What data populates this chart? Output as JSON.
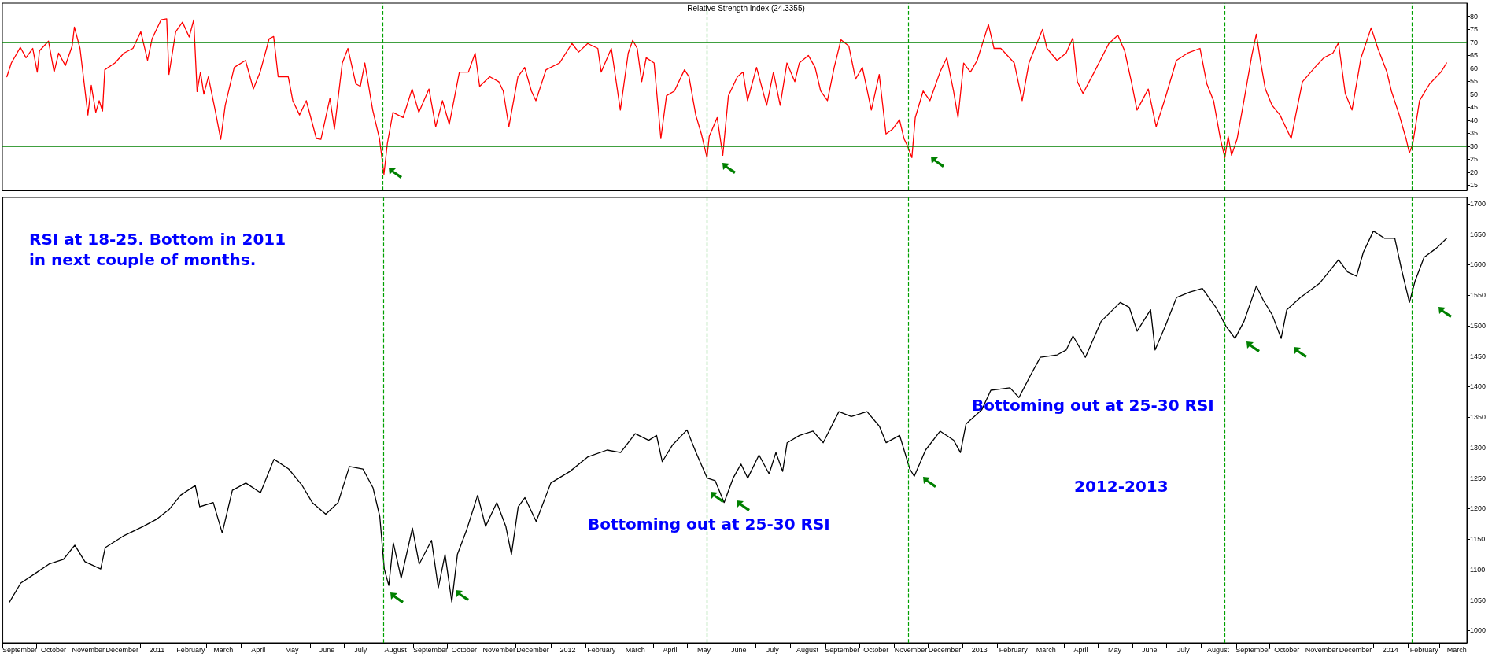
{
  "chart_data": [
    {
      "type": "line",
      "title": "Relative Strength Index (24.3355)",
      "color": "#ff0000",
      "marker": "none",
      "line_style": "solid",
      "tick_labels": "y",
      "x": [
        "2010-09-05",
        "2010-09-09",
        "2010-09-17",
        "2010-09-22",
        "2010-09-28",
        "2010-10-02",
        "2010-10-04",
        "2010-10-12",
        "2010-10-17",
        "2010-10-21",
        "2010-10-27",
        "2010-11-02",
        "2010-11-04",
        "2010-11-09",
        "2010-11-13",
        "2010-11-16",
        "2010-11-19",
        "2010-11-23",
        "2010-11-26",
        "2010-11-29",
        "2010-12-01",
        "2010-12-10",
        "2010-12-18",
        "2010-12-26",
        "2011-01-02",
        "2011-01-08",
        "2011-01-12",
        "2011-01-20",
        "2011-01-25",
        "2011-01-27",
        "2011-02-02",
        "2011-02-08",
        "2011-02-14",
        "2011-02-18",
        "2011-02-21",
        "2011-02-24",
        "2011-02-27",
        "2011-03-03",
        "2011-03-09",
        "2011-03-14",
        "2011-03-18",
        "2011-03-26",
        "2011-04-05",
        "2011-04-12",
        "2011-04-18",
        "2011-04-26",
        "2011-04-30",
        "2011-05-04",
        "2011-05-13",
        "2011-05-17",
        "2011-05-23",
        "2011-05-29",
        "2011-06-07",
        "2011-06-11",
        "2011-06-19",
        "2011-06-23",
        "2011-06-30",
        "2011-07-05",
        "2011-07-12",
        "2011-07-16",
        "2011-07-20",
        "2011-07-27",
        "2011-08-02",
        "2011-08-06",
        "2011-08-09",
        "2011-08-14",
        "2011-08-23",
        "2011-08-31",
        "2011-09-06",
        "2011-09-15",
        "2011-09-21",
        "2011-09-27",
        "2011-10-03",
        "2011-10-12",
        "2011-10-20",
        "2011-10-26",
        "2011-10-30",
        "2011-11-08",
        "2011-11-16",
        "2011-11-20",
        "2011-11-25",
        "2011-12-03",
        "2011-12-09",
        "2011-12-15",
        "2011-12-19",
        "2011-12-28",
        "2012-01-09",
        "2012-01-20",
        "2012-01-26",
        "2012-02-03",
        "2012-02-12",
        "2012-02-15",
        "2012-02-24",
        "2012-03-03",
        "2012-03-10",
        "2012-03-14",
        "2012-03-18",
        "2012-03-22",
        "2012-03-26",
        "2012-04-02",
        "2012-04-08",
        "2012-04-13",
        "2012-04-20",
        "2012-04-29",
        "2012-05-03",
        "2012-05-09",
        "2012-05-14",
        "2012-05-19",
        "2012-05-21",
        "2012-05-28",
        "2012-06-02",
        "2012-06-07",
        "2012-06-15",
        "2012-06-20",
        "2012-06-24",
        "2012-07-02",
        "2012-07-11",
        "2012-07-17",
        "2012-07-23",
        "2012-07-29",
        "2012-08-05",
        "2012-08-09",
        "2012-08-17",
        "2012-08-23",
        "2012-08-28",
        "2012-09-03",
        "2012-09-09",
        "2012-09-15",
        "2012-09-22",
        "2012-09-28",
        "2012-10-04",
        "2012-10-12",
        "2012-10-19",
        "2012-10-25",
        "2012-10-31",
        "2012-11-06",
        "2012-11-10",
        "2012-11-13",
        "2012-11-17",
        "2012-11-20",
        "2012-11-27",
        "2012-12-03",
        "2012-12-12",
        "2012-12-18",
        "2012-12-24",
        "2012-12-28",
        "2013-01-02",
        "2013-01-08",
        "2013-01-14",
        "2013-01-24",
        "2013-01-29",
        "2013-02-04",
        "2013-02-16",
        "2013-02-23",
        "2013-03-01",
        "2013-03-13",
        "2013-03-17",
        "2013-03-26",
        "2013-04-03",
        "2013-04-09",
        "2013-04-13",
        "2013-04-18",
        "2013-04-28",
        "2013-05-11",
        "2013-05-19",
        "2013-05-25",
        "2013-05-31",
        "2013-06-05",
        "2013-06-15",
        "2013-06-22",
        "2013-06-30",
        "2013-07-10",
        "2013-07-20",
        "2013-07-31",
        "2013-08-06",
        "2013-08-12",
        "2013-08-18",
        "2013-08-22",
        "2013-08-25",
        "2013-08-28",
        "2013-09-02",
        "2013-09-08",
        "2013-09-15",
        "2013-09-19",
        "2013-09-23",
        "2013-09-27",
        "2013-10-03",
        "2013-10-10",
        "2013-10-20",
        "2013-10-24",
        "2013-10-30",
        "2013-11-10",
        "2013-11-18",
        "2013-11-26",
        "2013-12-01",
        "2013-12-07",
        "2013-12-13",
        "2013-12-21",
        "2013-12-30",
        "2014-01-05",
        "2014-01-13",
        "2014-01-17",
        "2014-01-24",
        "2014-01-30",
        "2014-02-02",
        "2014-02-05",
        "2014-02-11",
        "2014-02-20",
        "2014-03-02",
        "2014-03-07"
      ],
      "values": [
        56.7,
        62,
        68,
        64,
        67.6,
        58.5,
        66.7,
        70.4,
        58.5,
        65.8,
        61,
        68.5,
        75.8,
        67.6,
        53,
        42,
        53.4,
        43,
        47.5,
        43.5,
        59.4,
        62,
        65.8,
        67.6,
        74,
        63,
        71.3,
        78.6,
        79,
        57.6,
        74,
        77.7,
        72,
        78.6,
        51,
        58.5,
        50,
        56.7,
        44,
        32.6,
        45.7,
        60.3,
        63,
        52,
        58.5,
        71.3,
        72.2,
        56.7,
        56.7,
        47.5,
        42,
        47.5,
        32.9,
        32.6,
        48.4,
        36.6,
        62,
        67.6,
        54,
        53,
        62,
        43.9,
        32.9,
        19.2,
        31,
        43,
        41,
        52,
        43,
        52,
        37.5,
        47.5,
        38.4,
        58.5,
        58.5,
        65.8,
        53,
        56.7,
        54.8,
        51.2,
        37.5,
        56.7,
        60.3,
        51.2,
        47.5,
        59.4,
        62,
        69.5,
        66.2,
        69.5,
        67.6,
        58.5,
        67.6,
        43.9,
        65.8,
        70.7,
        67.6,
        54.8,
        64,
        62,
        32.9,
        49.4,
        51.2,
        59.4,
        56.7,
        42,
        34.7,
        25.6,
        33.8,
        41,
        26.5,
        49.4,
        56.7,
        58.5,
        47.5,
        60.3,
        45.7,
        58.5,
        45.7,
        62,
        54.8,
        62,
        64.9,
        60.3,
        51.2,
        47.5,
        60.3,
        70.9,
        68.5,
        55.8,
        60.3,
        43.9,
        57.6,
        34.7,
        36.6,
        40.2,
        32.9,
        30.2,
        25.6,
        41,
        51.2,
        47.5,
        58.5,
        64,
        51.2,
        41,
        62,
        58.5,
        63,
        76.8,
        67.6,
        67.6,
        62,
        47.5,
        62,
        74.9,
        67.6,
        63,
        65.8,
        71.6,
        54.8,
        50.3,
        58.5,
        69.5,
        72.7,
        66.7,
        54.8,
        43.9,
        52,
        37.5,
        48.4,
        63,
        65.8,
        67.6,
        54,
        47.5,
        33,
        25.6,
        33.8,
        26.5,
        32.9,
        47.5,
        64.9,
        73.1,
        62,
        52,
        45.7,
        42,
        32.9,
        42,
        54.8,
        60.3,
        64,
        65.8,
        69.8,
        50.3,
        43.9,
        64,
        75.5,
        67.6,
        58.5,
        51.2,
        42,
        32.9,
        27.4,
        31,
        47.5,
        54,
        58.5,
        62
      ],
      "xlim": [
        "2010-09-01",
        "2014-03-25"
      ],
      "ylim": [
        13,
        85
      ],
      "yticks": [
        15,
        20,
        25,
        30,
        35,
        40,
        45,
        50,
        55,
        60,
        65,
        70,
        75,
        80
      ],
      "ref_lines": [
        {
          "axis": "y",
          "value": 70,
          "color": "#008000",
          "line_style": "solid"
        },
        {
          "axis": "y",
          "value": 30,
          "color": "#008000",
          "line_style": "solid"
        },
        {
          "axis": "x",
          "value": "2011-08-05",
          "color": "#00a000",
          "line_style": "dashed"
        },
        {
          "axis": "x",
          "value": "2012-05-19",
          "color": "#00a000",
          "line_style": "dashed"
        },
        {
          "axis": "x",
          "value": "2012-11-14",
          "color": "#00a000",
          "line_style": "dashed"
        },
        {
          "axis": "x",
          "value": "2013-08-22",
          "color": "#00a000",
          "line_style": "dashed"
        },
        {
          "axis": "x",
          "value": "2014-02-04",
          "color": "#00a000",
          "line_style": "dashed"
        }
      ]
    },
    {
      "type": "line",
      "color": "#000000",
      "marker": "none",
      "line_style": "solid",
      "x": [
        "2010-09-07",
        "2010-09-17",
        "2010-09-30",
        "2010-10-12",
        "2010-10-25",
        "2010-11-04",
        "2010-11-13",
        "2010-11-27",
        "2010-12-01",
        "2010-12-18",
        "2011-01-04",
        "2011-01-16",
        "2011-01-27",
        "2011-02-06",
        "2011-02-19",
        "2011-02-23",
        "2011-03-07",
        "2011-03-15",
        "2011-03-24",
        "2011-04-05",
        "2011-04-18",
        "2011-04-30",
        "2011-05-13",
        "2011-05-25",
        "2011-06-03",
        "2011-06-15",
        "2011-06-26",
        "2011-07-06",
        "2011-07-18",
        "2011-07-27",
        "2011-08-02",
        "2011-08-06",
        "2011-08-10",
        "2011-08-14",
        "2011-08-21",
        "2011-08-31",
        "2011-09-06",
        "2011-09-17",
        "2011-09-23",
        "2011-09-29",
        "2011-10-05",
        "2011-10-10",
        "2011-10-18",
        "2011-10-28",
        "2011-11-04",
        "2011-11-14",
        "2011-11-22",
        "2011-11-27",
        "2011-12-03",
        "2011-12-09",
        "2011-12-19",
        "2012-01-01",
        "2012-01-18",
        "2012-02-03",
        "2012-02-20",
        "2012-03-03",
        "2012-03-16",
        "2012-03-28",
        "2012-04-04",
        "2012-04-09",
        "2012-04-18",
        "2012-05-01",
        "2012-05-09",
        "2012-05-19",
        "2012-05-26",
        "2012-06-03",
        "2012-06-11",
        "2012-06-18",
        "2012-06-24",
        "2012-07-04",
        "2012-07-13",
        "2012-07-19",
        "2012-07-25",
        "2012-07-29",
        "2012-08-09",
        "2012-08-21",
        "2012-08-30",
        "2012-09-13",
        "2012-09-24",
        "2012-10-08",
        "2012-10-19",
        "2012-10-25",
        "2012-11-06",
        "2012-11-15",
        "2012-11-19",
        "2012-11-29",
        "2012-12-12",
        "2012-12-24",
        "2012-12-30",
        "2013-01-04",
        "2013-01-18",
        "2013-01-26",
        "2013-02-12",
        "2013-02-20",
        "2013-03-03",
        "2013-03-11",
        "2013-03-26",
        "2013-04-03",
        "2013-04-09",
        "2013-04-20",
        "2013-05-04",
        "2013-05-21",
        "2013-05-29",
        "2013-06-05",
        "2013-06-17",
        "2013-06-21",
        "2013-06-30",
        "2013-07-10",
        "2013-07-22",
        "2013-08-02",
        "2013-08-14",
        "2013-08-23",
        "2013-08-31",
        "2013-09-08",
        "2013-09-19",
        "2013-09-25",
        "2013-10-03",
        "2013-10-11",
        "2013-10-16",
        "2013-10-28",
        "2013-11-14",
        "2013-12-01",
        "2013-12-09",
        "2013-12-17",
        "2013-12-23",
        "2014-01-01",
        "2014-01-11",
        "2014-01-20",
        "2014-01-26",
        "2014-02-02",
        "2014-02-07",
        "2014-02-15",
        "2014-02-26",
        "2014-03-07"
      ],
      "values": [
        1047,
        1078,
        1094,
        1109,
        1117,
        1140,
        1113,
        1101,
        1136,
        1156,
        1171,
        1183,
        1199,
        1222,
        1238,
        1203,
        1210,
        1160,
        1230,
        1242,
        1226,
        1281,
        1265,
        1238,
        1210,
        1191,
        1210,
        1269,
        1265,
        1234,
        1187,
        1101,
        1074,
        1144,
        1086,
        1168,
        1109,
        1148,
        1070,
        1125,
        1047,
        1125,
        1164,
        1222,
        1171,
        1210,
        1171,
        1125,
        1203,
        1218,
        1179,
        1242,
        1261,
        1285,
        1296,
        1292,
        1323,
        1312,
        1320,
        1277,
        1304,
        1329,
        1292,
        1250,
        1246,
        1210,
        1250,
        1273,
        1250,
        1288,
        1257,
        1292,
        1261,
        1308,
        1320,
        1327,
        1308,
        1359,
        1351,
        1359,
        1335,
        1308,
        1320,
        1265,
        1253,
        1296,
        1327,
        1312,
        1292,
        1339,
        1362,
        1394,
        1398,
        1382,
        1421,
        1448,
        1452,
        1460,
        1483,
        1448,
        1507,
        1538,
        1530,
        1491,
        1526,
        1460,
        1499,
        1546,
        1555,
        1561,
        1530,
        1499,
        1479,
        1507,
        1565,
        1542,
        1518,
        1479,
        1526,
        1546,
        1569,
        1608,
        1588,
        1581,
        1620,
        1655,
        1643,
        1643,
        1592,
        1538,
        1573,
        1612,
        1627,
        1643
      ],
      "xlim": [
        "2010-09-01",
        "2014-03-25"
      ],
      "ylim": [
        980,
        1710
      ],
      "yticks": [
        1000,
        1050,
        1100,
        1150,
        1200,
        1250,
        1300,
        1350,
        1400,
        1450,
        1500,
        1550,
        1600,
        1650,
        1700
      ],
      "xticks": [
        {
          "value": "2010-09-01",
          "label": null
        },
        {
          "value": "2010-09-16",
          "label": "September"
        },
        {
          "value": "2010-10-01",
          "label": null
        },
        {
          "value": "2010-10-16",
          "label": "October"
        },
        {
          "value": "2010-11-01",
          "label": null
        },
        {
          "value": "2010-11-16",
          "label": "November"
        },
        {
          "value": "2010-12-01",
          "label": null
        },
        {
          "value": "2010-12-16",
          "label": "December"
        },
        {
          "value": "2011-01-01",
          "label": null
        },
        {
          "value": "2011-01-16",
          "label": "2011"
        },
        {
          "value": "2011-02-01",
          "label": null
        },
        {
          "value": "2011-02-15",
          "label": "February"
        },
        {
          "value": "2011-03-01",
          "label": null
        },
        {
          "value": "2011-03-16",
          "label": "March"
        },
        {
          "value": "2011-04-01",
          "label": null
        },
        {
          "value": "2011-04-16",
          "label": "April"
        },
        {
          "value": "2011-05-01",
          "label": null
        },
        {
          "value": "2011-05-16",
          "label": "May"
        },
        {
          "value": "2011-06-01",
          "label": null
        },
        {
          "value": "2011-06-16",
          "label": "June"
        },
        {
          "value": "2011-07-01",
          "label": null
        },
        {
          "value": "2011-07-16",
          "label": "July"
        },
        {
          "value": "2011-08-01",
          "label": null
        },
        {
          "value": "2011-08-16",
          "label": "August"
        },
        {
          "value": "2011-09-01",
          "label": null
        },
        {
          "value": "2011-09-16",
          "label": "September"
        },
        {
          "value": "2011-10-01",
          "label": null
        },
        {
          "value": "2011-10-16",
          "label": "October"
        },
        {
          "value": "2011-11-01",
          "label": null
        },
        {
          "value": "2011-11-16",
          "label": "November"
        },
        {
          "value": "2011-12-01",
          "label": null
        },
        {
          "value": "2011-12-16",
          "label": "December"
        },
        {
          "value": "2012-01-01",
          "label": null
        },
        {
          "value": "2012-01-16",
          "label": "2012"
        },
        {
          "value": "2012-02-01",
          "label": null
        },
        {
          "value": "2012-02-15",
          "label": "February"
        },
        {
          "value": "2012-03-01",
          "label": null
        },
        {
          "value": "2012-03-16",
          "label": "March"
        },
        {
          "value": "2012-04-01",
          "label": null
        },
        {
          "value": "2012-04-16",
          "label": "April"
        },
        {
          "value": "2012-05-01",
          "label": null
        },
        {
          "value": "2012-05-16",
          "label": "May"
        },
        {
          "value": "2012-06-01",
          "label": null
        },
        {
          "value": "2012-06-16",
          "label": "June"
        },
        {
          "value": "2012-07-01",
          "label": null
        },
        {
          "value": "2012-07-16",
          "label": "July"
        },
        {
          "value": "2012-08-01",
          "label": null
        },
        {
          "value": "2012-08-16",
          "label": "August"
        },
        {
          "value": "2012-09-01",
          "label": null
        },
        {
          "value": "2012-09-16",
          "label": "September"
        },
        {
          "value": "2012-10-01",
          "label": null
        },
        {
          "value": "2012-10-16",
          "label": "October"
        },
        {
          "value": "2012-11-01",
          "label": null
        },
        {
          "value": "2012-11-16",
          "label": "November"
        },
        {
          "value": "2012-12-01",
          "label": null
        },
        {
          "value": "2012-12-16",
          "label": "December"
        },
        {
          "value": "2013-01-01",
          "label": null
        },
        {
          "value": "2013-01-16",
          "label": "2013"
        },
        {
          "value": "2013-02-01",
          "label": null
        },
        {
          "value": "2013-02-15",
          "label": "February"
        },
        {
          "value": "2013-03-01",
          "label": null
        },
        {
          "value": "2013-03-16",
          "label": "March"
        },
        {
          "value": "2013-04-01",
          "label": null
        },
        {
          "value": "2013-04-16",
          "label": "April"
        },
        {
          "value": "2013-05-01",
          "label": null
        },
        {
          "value": "2013-05-16",
          "label": "May"
        },
        {
          "value": "2013-06-01",
          "label": null
        },
        {
          "value": "2013-06-16",
          "label": "June"
        },
        {
          "value": "2013-07-01",
          "label": null
        },
        {
          "value": "2013-07-16",
          "label": "July"
        },
        {
          "value": "2013-08-01",
          "label": null
        },
        {
          "value": "2013-08-16",
          "label": "August"
        },
        {
          "value": "2013-09-01",
          "label": null
        },
        {
          "value": "2013-09-16",
          "label": "September"
        },
        {
          "value": "2013-10-01",
          "label": null
        },
        {
          "value": "2013-10-16",
          "label": "October"
        },
        {
          "value": "2013-11-01",
          "label": null
        },
        {
          "value": "2013-11-16",
          "label": "November"
        },
        {
          "value": "2013-12-01",
          "label": null
        },
        {
          "value": "2013-12-16",
          "label": "December"
        },
        {
          "value": "2014-01-01",
          "label": null
        },
        {
          "value": "2014-01-16",
          "label": "2014"
        },
        {
          "value": "2014-02-01",
          "label": null
        },
        {
          "value": "2014-02-15",
          "label": "February"
        },
        {
          "value": "2014-03-01",
          "label": null
        },
        {
          "value": "2014-03-16",
          "label": "March"
        }
      ],
      "ref_lines": [
        {
          "axis": "x",
          "value": "2011-08-05",
          "color": "#00a000",
          "line_style": "dashed"
        },
        {
          "axis": "x",
          "value": "2012-05-19",
          "color": "#00a000",
          "line_style": "dashed"
        },
        {
          "axis": "x",
          "value": "2012-11-14",
          "color": "#00a000",
          "line_style": "dashed"
        },
        {
          "axis": "x",
          "value": "2013-08-22",
          "color": "#00a000",
          "line_style": "dashed"
        },
        {
          "axis": "x",
          "value": "2014-02-04",
          "color": "#00a000",
          "line_style": "dashed"
        }
      ],
      "annotations": [
        "RSI at 18-25. Bottom in 2011\nin next couple of months.",
        "Bottoming out at 25-30 RSI",
        "Bottoming out at 25-30 RSI",
        "2012-2013"
      ]
    }
  ]
}
